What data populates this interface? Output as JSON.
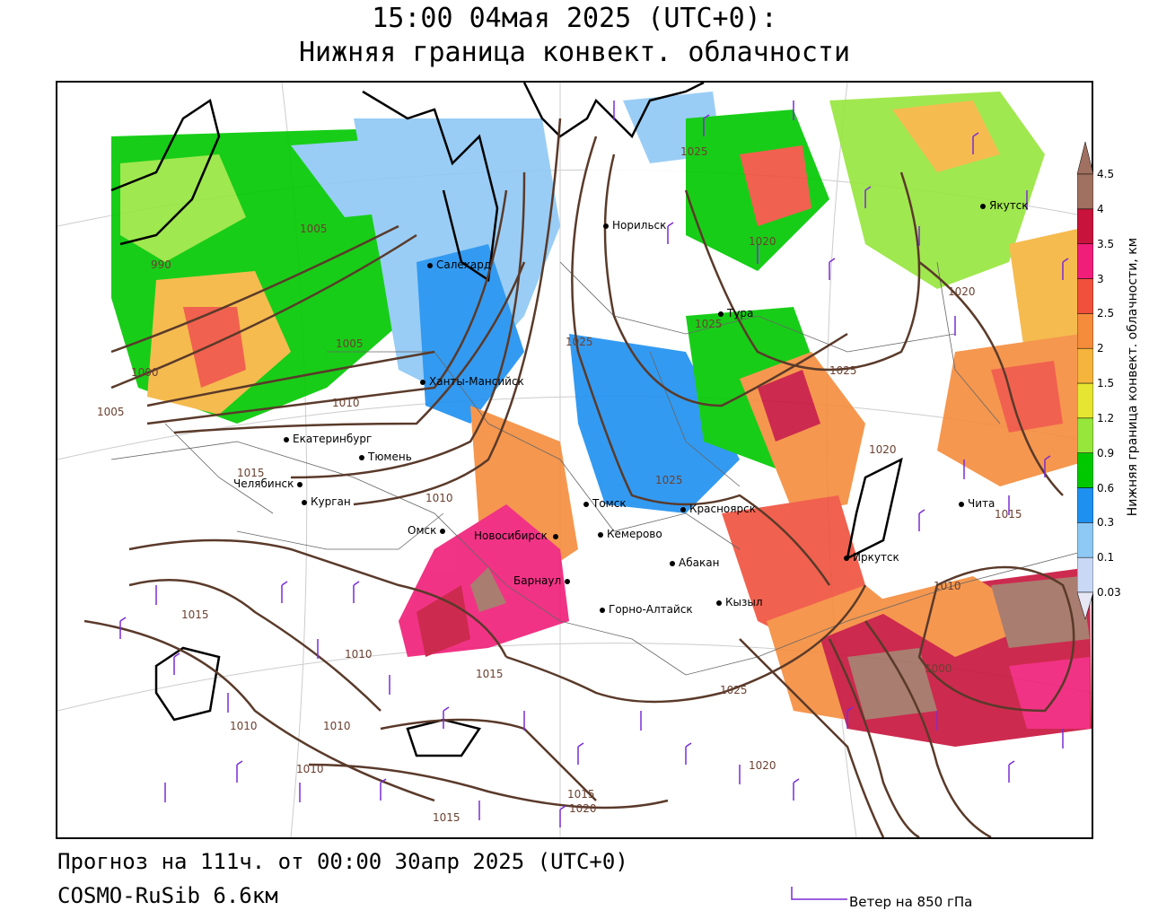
{
  "title": {
    "line1": "15:00 04мая 2025 (UTC+0):",
    "line2": "Нижняя граница конвект. облачности"
  },
  "footer": {
    "forecast": "Прогноз на 111ч. от 00:00 30апр 2025 (UTC+0)",
    "model": "COSMO-RuSib 6.6км",
    "wind_legend": "Ветер на 850 гПа"
  },
  "legend": {
    "title": "Нижняя граница конвект. облачности, км",
    "levels": [
      {
        "label": "0.03",
        "color": "#e6e6f5"
      },
      {
        "label": "0.1",
        "color": "#c8d8f5"
      },
      {
        "label": "0.3",
        "color": "#8ec8f5"
      },
      {
        "label": "0.6",
        "color": "#1e90f0"
      },
      {
        "label": "0.9",
        "color": "#00c800"
      },
      {
        "label": "1.2",
        "color": "#96e63c"
      },
      {
        "label": "1.5",
        "color": "#e6e632"
      },
      {
        "label": "2",
        "color": "#f5b43c"
      },
      {
        "label": "2.5",
        "color": "#f58c3c"
      },
      {
        "label": "3",
        "color": "#f0503c"
      },
      {
        "label": "3.5",
        "color": "#f01e78"
      },
      {
        "label": "4",
        "color": "#c8143c"
      },
      {
        "label": "4.5",
        "color": "#a07060"
      }
    ]
  },
  "cities": [
    {
      "name": "Салехард"
    },
    {
      "name": "Норильск"
    },
    {
      "name": "Якутск"
    },
    {
      "name": "Тура"
    },
    {
      "name": "Ханты-Мансийск"
    },
    {
      "name": "Екатеринбург"
    },
    {
      "name": "Тюмень"
    },
    {
      "name": "Челябинск"
    },
    {
      "name": "Курган"
    },
    {
      "name": "Омск"
    },
    {
      "name": "Новосибирск"
    },
    {
      "name": "Барнаул"
    },
    {
      "name": "Томск"
    },
    {
      "name": "Кемерово"
    },
    {
      "name": "Красноярск"
    },
    {
      "name": "Абакан"
    },
    {
      "name": "Горно-Алтайск"
    },
    {
      "name": "Кызыл"
    },
    {
      "name": "Иркутск"
    },
    {
      "name": "Чита"
    }
  ],
  "isobar_labels": [
    "1005",
    "990",
    "1005",
    "1000",
    "1005",
    "1010",
    "1015",
    "1010",
    "1015",
    "1010",
    "1010",
    "1010",
    "1010",
    "1015",
    "1015",
    "1020",
    "1015",
    "1025",
    "1025",
    "1025",
    "1025",
    "1025",
    "1020",
    "1020",
    "1020",
    "1015",
    "1010",
    "1000",
    "1025",
    "1020"
  ]
}
